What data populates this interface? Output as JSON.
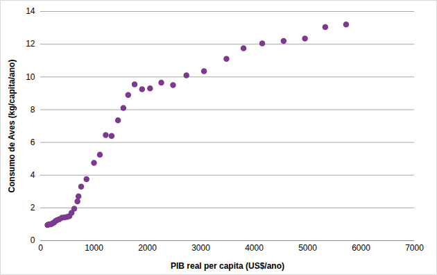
{
  "chart_data": {
    "type": "scatter",
    "x_label": "PIB real per capita (US$/ano)",
    "y_label": "Consumo de Aves (kg/capita/ano)",
    "x": [
      130,
      160,
      190,
      220,
      250,
      280,
      310,
      350,
      400,
      450,
      500,
      540,
      580,
      630,
      690,
      710,
      760,
      860,
      1000,
      1110,
      1220,
      1330,
      1450,
      1550,
      1640,
      1760,
      1900,
      2050,
      2260,
      2480,
      2730,
      3060,
      3480,
      3800,
      4150,
      4550,
      4950,
      5330,
      5720
    ],
    "values": [
      0.95,
      1.0,
      1.0,
      1.05,
      1.1,
      1.2,
      1.25,
      1.3,
      1.4,
      1.42,
      1.45,
      1.5,
      1.7,
      1.95,
      2.4,
      2.7,
      3.3,
      3.75,
      4.75,
      5.25,
      6.45,
      6.4,
      7.35,
      8.1,
      8.9,
      9.55,
      9.25,
      9.3,
      9.65,
      9.5,
      10.1,
      10.35,
      11.1,
      11.75,
      12.05,
      12.2,
      12.35,
      13.05,
      13.2
    ],
    "color": "#7b3a8e",
    "marker": "circle",
    "xlim": [
      0,
      7000
    ],
    "xticks": [
      0,
      1000,
      2000,
      3000,
      4000,
      5000,
      6000,
      7000
    ],
    "ylim": [
      0,
      14
    ],
    "yticks": [
      0,
      2,
      4,
      6,
      8,
      10,
      12,
      14
    ],
    "grid": true
  }
}
